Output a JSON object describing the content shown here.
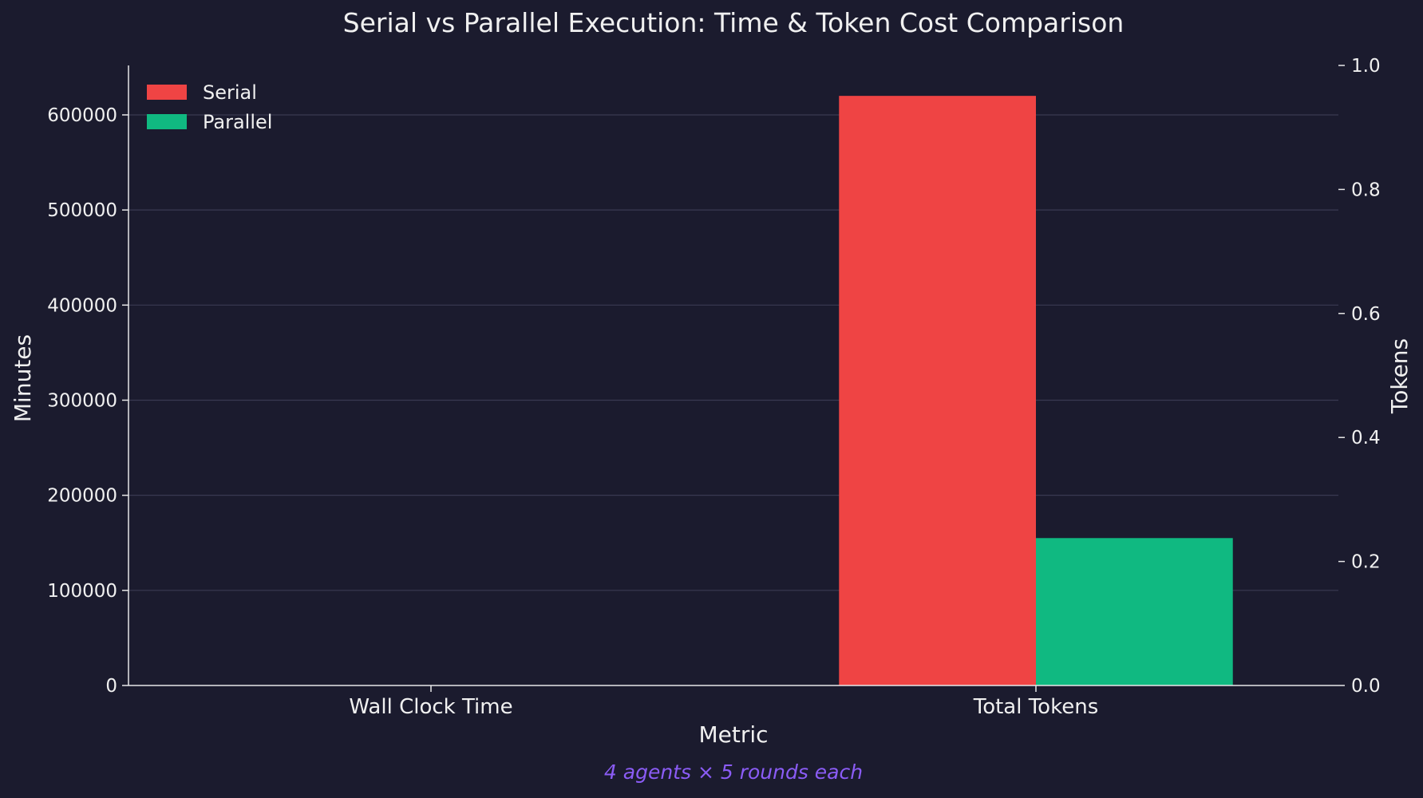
{
  "chart_data": {
    "type": "bar",
    "title": "Serial vs Parallel Execution: Time & Token Cost Comparison",
    "subtitle": "4 agents × 5 rounds each",
    "xlabel": "Metric",
    "ylabel": "Minutes",
    "y2label": "Tokens",
    "categories": [
      "Wall Clock Time",
      "Total Tokens"
    ],
    "series": [
      {
        "name": "Serial",
        "color": "#ef4444",
        "values": [
          0,
          620000
        ]
      },
      {
        "name": "Parallel",
        "color": "#10b981",
        "values": [
          0,
          155000
        ]
      }
    ],
    "ylim": [
      0,
      652000
    ],
    "yticks": [
      0,
      100000,
      200000,
      300000,
      400000,
      500000,
      600000
    ],
    "y2lim": [
      0,
      1.0
    ],
    "y2ticks": [
      "0.0",
      "0.2",
      "0.4",
      "0.6",
      "0.8",
      "1.0"
    ],
    "grid": true,
    "legend_position": "top-left"
  },
  "colors": {
    "background": "#1b1b2e",
    "text": "#f0f0f0",
    "subtitle": "#8b5cf6",
    "grid": "#3a3a52",
    "axis": "#e8e8e8"
  }
}
